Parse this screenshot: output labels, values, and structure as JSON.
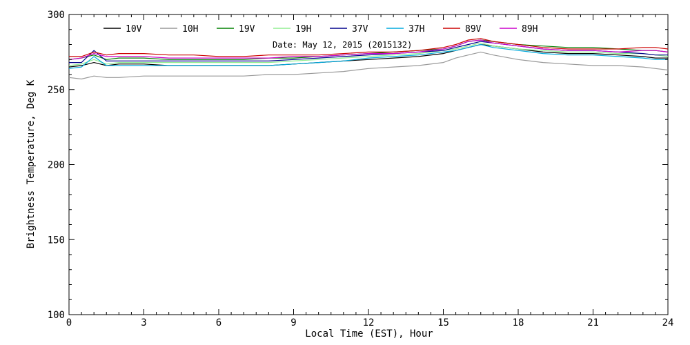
{
  "chart_data": {
    "type": "line",
    "xlabel": "Local Time (EST), Hour",
    "ylabel": "Brightness Temperature, Deg K",
    "xlim": [
      0,
      24
    ],
    "ylim": [
      100,
      300
    ],
    "xticks": [
      0,
      3,
      6,
      9,
      12,
      15,
      18,
      21,
      24
    ],
    "yticks": [
      100,
      150,
      200,
      250,
      300
    ],
    "grid": false,
    "legend_position": "top",
    "annotation": "Date: May 12, 2015 (2015132)",
    "series": [
      {
        "name": "10V",
        "color": "#000000",
        "x": [
          0,
          0.5,
          1,
          1.5,
          2,
          3,
          4,
          5,
          6,
          7,
          8,
          9,
          10,
          11,
          12,
          13,
          14,
          15,
          15.5,
          16,
          16.5,
          17,
          18,
          19,
          20,
          21,
          22,
          23,
          23.5,
          24
        ],
        "y": [
          265,
          266,
          268,
          266,
          267,
          267,
          266,
          266,
          266,
          266,
          266,
          267,
          268,
          269,
          270,
          271,
          272,
          274,
          276,
          278,
          280,
          279,
          277,
          275,
          274,
          274,
          273,
          272,
          271,
          271
        ]
      },
      {
        "name": "10H",
        "color": "#999999",
        "x": [
          0,
          0.5,
          1,
          1.5,
          2,
          3,
          4,
          5,
          6,
          7,
          8,
          9,
          10,
          11,
          12,
          13,
          14,
          15,
          15.5,
          16,
          16.5,
          17,
          18,
          19,
          20,
          21,
          22,
          23,
          23.5,
          24
        ],
        "y": [
          258,
          257,
          259,
          258,
          258,
          259,
          259,
          259,
          259,
          259,
          260,
          260,
          261,
          262,
          264,
          265,
          266,
          268,
          271,
          273,
          275,
          273,
          270,
          268,
          267,
          266,
          266,
          265,
          264,
          263
        ]
      },
      {
        "name": "19V",
        "color": "#008000",
        "x": [
          0,
          0.5,
          1,
          1.5,
          2,
          3,
          4,
          5,
          6,
          7,
          8,
          9,
          10,
          11,
          12,
          13,
          14,
          15,
          15.5,
          16,
          16.5,
          17,
          18,
          19,
          20,
          21,
          22,
          23,
          23.5,
          24
        ],
        "y": [
          270,
          271,
          273,
          270,
          271,
          271,
          270,
          270,
          270,
          270,
          271,
          271,
          272,
          273,
          274,
          275,
          276,
          277,
          279,
          282,
          283,
          282,
          280,
          279,
          278,
          278,
          277,
          276,
          276,
          275
        ]
      },
      {
        "name": "19H",
        "color": "#90ee90",
        "x": [
          0,
          0.5,
          1,
          1.5,
          2,
          3,
          4,
          5,
          6,
          7,
          8,
          9,
          10,
          11,
          12,
          13,
          14,
          15,
          15.5,
          16,
          16.5,
          17,
          18,
          19,
          20,
          21,
          22,
          23,
          23.5,
          24
        ],
        "y": [
          266,
          267,
          270,
          267,
          268,
          268,
          268,
          268,
          268,
          268,
          268,
          269,
          270,
          271,
          272,
          273,
          274,
          276,
          277,
          279,
          281,
          279,
          277,
          276,
          275,
          275,
          274,
          274,
          273,
          272
        ]
      },
      {
        "name": "37V",
        "color": "#00008b",
        "x": [
          0,
          0.5,
          1,
          1.5,
          2,
          3,
          4,
          5,
          6,
          7,
          8,
          9,
          10,
          11,
          12,
          13,
          14,
          15,
          15.5,
          16,
          16.5,
          17,
          18,
          19,
          20,
          21,
          22,
          23,
          23.5,
          24
        ],
        "y": [
          268,
          268,
          276,
          269,
          269,
          269,
          269,
          269,
          269,
          269,
          269,
          270,
          271,
          272,
          273,
          274,
          275,
          276,
          278,
          280,
          282,
          281,
          279,
          277,
          276,
          276,
          275,
          274,
          273,
          273
        ]
      },
      {
        "name": "37H",
        "color": "#00aadd",
        "x": [
          0,
          0.5,
          1,
          1.5,
          2,
          3,
          4,
          5,
          6,
          7,
          8,
          9,
          10,
          11,
          12,
          13,
          14,
          15,
          15.5,
          16,
          16.5,
          17,
          18,
          19,
          20,
          21,
          22,
          23,
          23.5,
          24
        ],
        "y": [
          264,
          265,
          272,
          266,
          266,
          266,
          266,
          266,
          266,
          266,
          266,
          267,
          268,
          269,
          271,
          272,
          273,
          275,
          276,
          278,
          280,
          278,
          276,
          274,
          273,
          273,
          272,
          271,
          270,
          270
        ]
      },
      {
        "name": "89V",
        "color": "#cc0000",
        "x": [
          0,
          0.5,
          1,
          1.5,
          2,
          3,
          4,
          5,
          6,
          7,
          8,
          9,
          10,
          11,
          12,
          13,
          14,
          15,
          15.5,
          16,
          16.5,
          17,
          18,
          19,
          20,
          21,
          22,
          23,
          23.5,
          24
        ],
        "y": [
          272,
          272,
          275,
          273,
          274,
          274,
          273,
          273,
          272,
          272,
          273,
          273,
          273,
          274,
          275,
          275,
          276,
          278,
          280,
          283,
          284,
          282,
          280,
          278,
          277,
          277,
          277,
          278,
          278,
          277
        ]
      },
      {
        "name": "89H",
        "color": "#cc00cc",
        "x": [
          0,
          0.5,
          1,
          1.5,
          2,
          3,
          4,
          5,
          6,
          7,
          8,
          9,
          10,
          11,
          12,
          13,
          14,
          15,
          15.5,
          16,
          16.5,
          17,
          18,
          19,
          20,
          21,
          22,
          23,
          23.5,
          24
        ],
        "y": [
          270,
          271,
          274,
          272,
          272,
          272,
          271,
          271,
          271,
          271,
          271,
          272,
          272,
          273,
          274,
          274,
          275,
          277,
          279,
          282,
          283,
          281,
          279,
          277,
          276,
          276,
          275,
          276,
          276,
          275
        ]
      }
    ]
  }
}
